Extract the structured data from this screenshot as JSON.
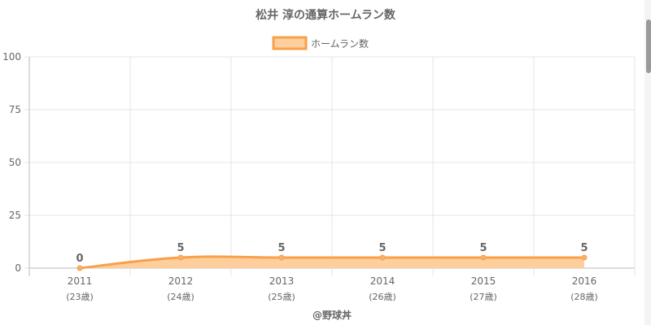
{
  "colors": {
    "line": "#f8a04a",
    "fill": "#fecf9c",
    "point": "#f8b06a",
    "grid": "#e4e4e4",
    "axis": "#bbbbbb",
    "title": "#666666",
    "tick": "#666666",
    "label": "#666666"
  },
  "chart_data": {
    "type": "area",
    "title": "松井 淳の通算ホームラン数",
    "xlabel": "",
    "ylabel": "",
    "categories": [
      "2011",
      "2012",
      "2013",
      "2014",
      "2015",
      "2016"
    ],
    "sublabels": [
      "(23歳)",
      "(24歳)",
      "(25歳)",
      "(26歳)",
      "(27歳)",
      "(28歳)"
    ],
    "series": [
      {
        "name": "ホームラン数",
        "values": [
          0,
          5,
          5,
          5,
          5,
          5
        ]
      }
    ],
    "ylim": [
      0,
      100
    ],
    "yticks": [
      "0",
      "25",
      "50",
      "75",
      "100"
    ],
    "grid": true,
    "legend_position": "top-center",
    "data_labels": [
      "0",
      "5",
      "5",
      "5",
      "5",
      "5"
    ]
  },
  "footer": {
    "credit": "@野球丼"
  }
}
